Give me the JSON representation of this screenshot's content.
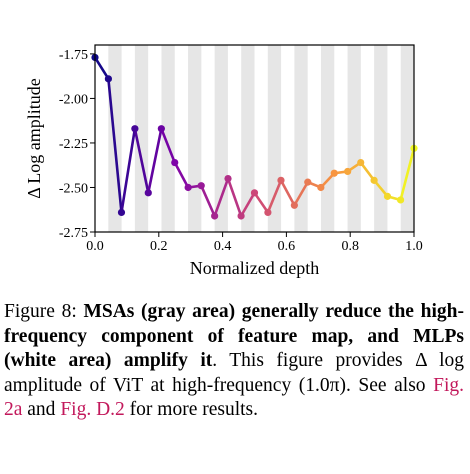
{
  "chart_data": {
    "type": "line",
    "xlabel": "Normalized depth",
    "ylabel": "Δ Log amplitude",
    "xlim": [
      0.0,
      1.0
    ],
    "ylim": [
      -2.75,
      -1.7
    ],
    "xticks": [
      "0.0",
      "0.2",
      "0.4",
      "0.6",
      "0.8",
      "1.0"
    ],
    "yticks": [
      "-1.75",
      "-2.00",
      "-2.25",
      "-2.50",
      "-2.75"
    ],
    "grid": false,
    "background_bands": "alternating gray (MSA) and white (MLP) blocks, 24 blocks",
    "colormap": "plasma",
    "series": [
      {
        "x": [
          0.0,
          0.042,
          0.083,
          0.125,
          0.167,
          0.208,
          0.25,
          0.292,
          0.333,
          0.375,
          0.417,
          0.458,
          0.5,
          0.542,
          0.583,
          0.625,
          0.667,
          0.708,
          0.75,
          0.792,
          0.833,
          0.875,
          0.917,
          0.958,
          1.0
        ],
        "values": [
          -1.77,
          -1.89,
          -2.64,
          -2.17,
          -2.53,
          -2.17,
          -2.36,
          -2.5,
          -2.49,
          -2.66,
          -2.45,
          -2.66,
          -2.53,
          -2.64,
          -2.46,
          -2.6,
          -2.47,
          -2.5,
          -2.42,
          -2.41,
          -2.36,
          -2.46,
          -2.55,
          -2.57,
          -2.28
        ]
      }
    ]
  },
  "caption": {
    "label": "Figure 8:",
    "bold": "MSAs (gray area) generally reduce the high-frequency component of feature map, and MLPs (white area) amplify it",
    "text1": ". This figure provides Δ log amplitude of ViT at high-frequency (1.0π). See also ",
    "ref1": "Fig. 2a",
    "text2": " and ",
    "ref2": "Fig. D.2",
    "text3": " for more results."
  },
  "colors": {
    "band": "#e6e6e6",
    "plasma_start": "#0d0887",
    "plasma_end": "#f0f921"
  }
}
